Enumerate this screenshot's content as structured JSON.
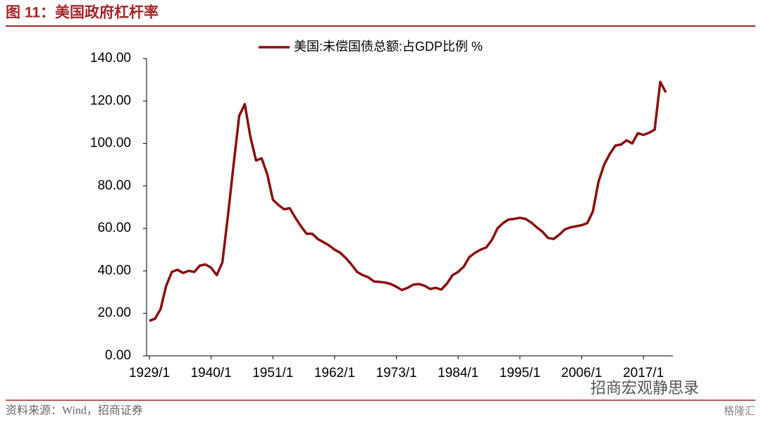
{
  "header": {
    "title": "图 11：美国政府杠杆率"
  },
  "chart_data": {
    "type": "line",
    "legend": "top",
    "categories": [
      "1929/1",
      null,
      null,
      null,
      null,
      null,
      null,
      null,
      null,
      null,
      null,
      "1940/1",
      null,
      null,
      null,
      null,
      null,
      null,
      null,
      null,
      null,
      null,
      "1951/1",
      null,
      null,
      null,
      null,
      null,
      null,
      null,
      null,
      null,
      null,
      "1962/1",
      null,
      null,
      null,
      null,
      null,
      null,
      null,
      null,
      null,
      null,
      "1973/1",
      null,
      null,
      null,
      null,
      null,
      null,
      null,
      null,
      null,
      null,
      "1984/1",
      null,
      null,
      null,
      null,
      null,
      null,
      null,
      null,
      null,
      null,
      "1995/1",
      null,
      null,
      null,
      null,
      null,
      null,
      null,
      null,
      null,
      null,
      "2006/1",
      null,
      null,
      null,
      null,
      null,
      null,
      null,
      null,
      null,
      null,
      "2017/1",
      null,
      null,
      null,
      null
    ],
    "series": [
      {
        "name": "美国:未偿国债总额:占GDP比例 %",
        "color": "#8b1010",
        "values": [
          16.5,
          17.5,
          22,
          33,
          39.5,
          40.5,
          39,
          40,
          39.5,
          42.5,
          43,
          41.5,
          38,
          44,
          66,
          90,
          113,
          118.5,
          103,
          92,
          93,
          85.5,
          73.5,
          71,
          69,
          69.5,
          65,
          61,
          57.5,
          57.5,
          55,
          53.5,
          52,
          50,
          48.5,
          46,
          43,
          39.5,
          38,
          37,
          35,
          34.8,
          34.5,
          33.8,
          32.5,
          31,
          32,
          33.5,
          33.8,
          33,
          31.5,
          32,
          31.2,
          34,
          38,
          39.5,
          42,
          46.5,
          48.5,
          50,
          51,
          54.5,
          60,
          62.5,
          64.2,
          64.5,
          65,
          64.5,
          62.8,
          60.5,
          58.5,
          55.5,
          55,
          57,
          59.5,
          60.5,
          61,
          61.5,
          62.5,
          68,
          82,
          90,
          95,
          99,
          99.5,
          101.5,
          100,
          104.8,
          104,
          105,
          106.5,
          129,
          124
        ]
      }
    ],
    "ylim": [
      0,
      140
    ],
    "yticks": [
      {
        "value": 0,
        "label": "0.00"
      },
      {
        "value": 20,
        "label": "20.00"
      },
      {
        "value": 40,
        "label": "40.00"
      },
      {
        "value": 60,
        "label": "60.00"
      },
      {
        "value": 80,
        "label": "80.00"
      },
      {
        "value": 100,
        "label": "100.00"
      },
      {
        "value": 120,
        "label": "120.00"
      },
      {
        "value": 140,
        "label": "140.00"
      }
    ]
  },
  "watermark": "招商宏观静思录",
  "footer": {
    "source": "资料来源：Wind，招商证券",
    "logo": "格隆汇"
  }
}
